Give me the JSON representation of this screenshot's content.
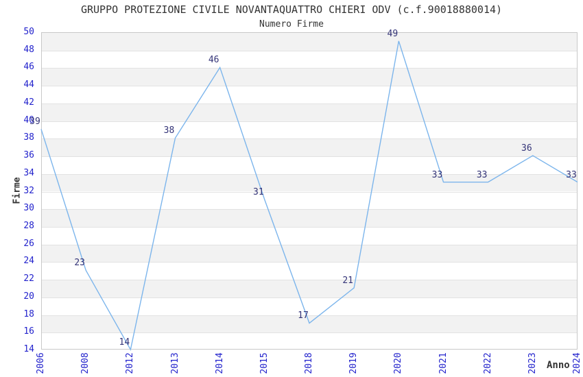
{
  "chart_data": {
    "type": "line",
    "title": "GRUPPO PROTEZIONE CIVILE NOVANTAQUATTRO CHIERI ODV (c.f.90018880014)",
    "subtitle": "Numero Firme",
    "xlabel": "Anno",
    "ylabel": "Firme",
    "categories": [
      "2006",
      "2008",
      "2012",
      "2013",
      "2014",
      "2015",
      "2018",
      "2019",
      "2020",
      "2021",
      "2022",
      "2023",
      "2024"
    ],
    "values": [
      39,
      23,
      14,
      38,
      46,
      31,
      17,
      21,
      49,
      33,
      33,
      36,
      33
    ],
    "ylim": [
      14,
      50
    ],
    "ytick_step": 2,
    "grid": "horizontal-bands-alternating",
    "legend": "none",
    "colors": {
      "line": "#7cb5ec",
      "tick_label": "#2222cc",
      "point_label": "#333377",
      "band_gray": "#f2f2f2",
      "gridline": "#e2e2e2",
      "plot_border": "#c8c8c8",
      "title_text": "#333333",
      "background": "#ffffff"
    }
  }
}
